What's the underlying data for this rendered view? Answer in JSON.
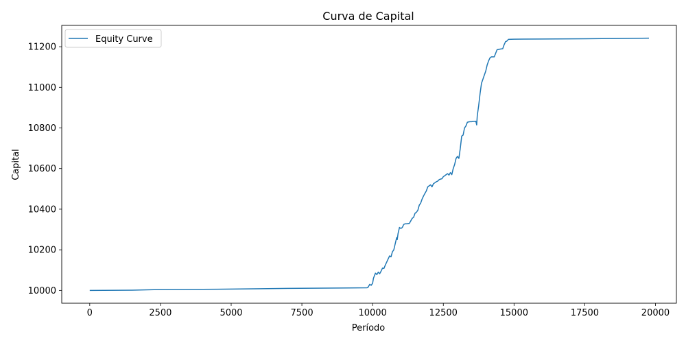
{
  "chart_data": {
    "type": "line",
    "title": "Curva de Capital",
    "xlabel": "Período",
    "ylabel": "Capital",
    "xlim": [
      -990,
      20740
    ],
    "ylim": [
      9937,
      11305
    ],
    "x_ticks": [
      0,
      2500,
      5000,
      7500,
      10000,
      12500,
      15000,
      17500,
      20000
    ],
    "y_ticks": [
      10000,
      10200,
      10400,
      10600,
      10800,
      11000,
      11200
    ],
    "grid": false,
    "legend": {
      "position": "upper left",
      "entries": [
        "Equity Curve"
      ]
    },
    "series": [
      {
        "name": "Equity Curve",
        "color": "#1f77b4",
        "x": [
          0,
          1500,
          2400,
          4500,
          7000,
          9800,
          9830,
          9900,
          9950,
          10000,
          10030,
          10100,
          10150,
          10200,
          10250,
          10300,
          10350,
          10400,
          10450,
          10500,
          10550,
          10600,
          10650,
          10700,
          10750,
          10800,
          10850,
          10870,
          10900,
          10950,
          11000,
          11050,
          11100,
          11150,
          11200,
          11300,
          11400,
          11450,
          11500,
          11550,
          11600,
          11650,
          11700,
          11750,
          11800,
          11850,
          11900,
          11950,
          12000,
          12050,
          12100,
          12150,
          12200,
          12250,
          12300,
          12350,
          12400,
          12450,
          12500,
          12550,
          12600,
          12650,
          12700,
          12750,
          12800,
          12850,
          12900,
          12950,
          13000,
          13050,
          13100,
          13150,
          13200,
          13250,
          13300,
          13350,
          13400,
          13450,
          13500,
          13550,
          13600,
          13650,
          13680,
          13700,
          13720,
          13750,
          13800,
          13850,
          13900,
          13950,
          14000,
          14050,
          14100,
          14150,
          14200,
          14300,
          14400,
          14500,
          14600,
          14650,
          14700,
          14750,
          14800,
          15000,
          16000,
          17500,
          19000,
          19770
        ],
        "y": [
          10000,
          10001,
          10004,
          10006,
          10010,
          10013,
          10014,
          10030,
          10025,
          10035,
          10060,
          10085,
          10078,
          10090,
          10082,
          10095,
          10110,
          10108,
          10125,
          10140,
          10155,
          10170,
          10165,
          10190,
          10200,
          10230,
          10260,
          10250,
          10280,
          10310,
          10305,
          10310,
          10325,
          10328,
          10328,
          10330,
          10355,
          10360,
          10380,
          10385,
          10395,
          10420,
          10430,
          10450,
          10465,
          10478,
          10490,
          10510,
          10515,
          10520,
          10510,
          10525,
          10530,
          10535,
          10538,
          10545,
          10548,
          10550,
          10560,
          10565,
          10570,
          10575,
          10568,
          10580,
          10570,
          10600,
          10620,
          10650,
          10660,
          10650,
          10700,
          10760,
          10765,
          10800,
          10810,
          10828,
          10830,
          10831,
          10831,
          10832,
          10832,
          10833,
          10815,
          10860,
          10880,
          10910,
          10970,
          11020,
          11040,
          11060,
          11080,
          11110,
          11130,
          11145,
          11150,
          11150,
          11185,
          11188,
          11190,
          11210,
          11225,
          11228,
          11236,
          11237,
          11238,
          11239,
          11241,
          11242
        ]
      }
    ]
  }
}
